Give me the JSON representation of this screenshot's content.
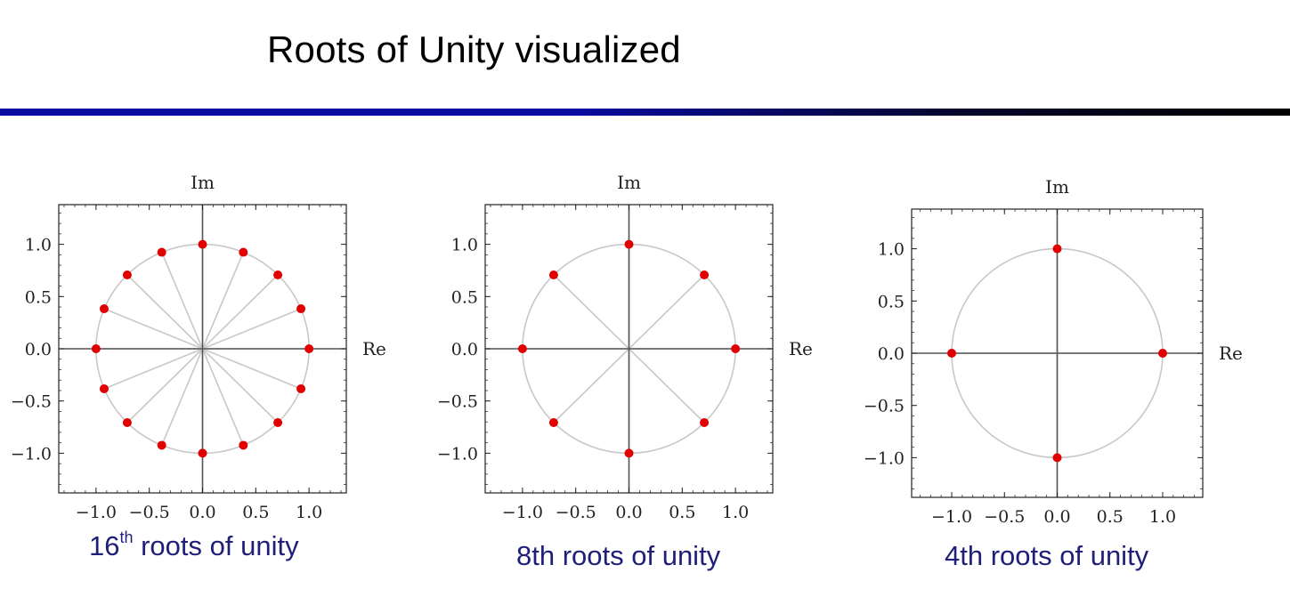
{
  "slide": {
    "title": "Roots of Unity visualized",
    "accent_color": "#0a0a9e"
  },
  "captions": [
    {
      "prefix": "16",
      "sup": "th",
      "text": " roots of unity"
    },
    {
      "prefix": "8th roots of unity",
      "sup": "",
      "text": ""
    },
    {
      "prefix": "4th roots of unity",
      "sup": "",
      "text": ""
    }
  ],
  "chart_data": [
    {
      "type": "scatter",
      "n": 16,
      "xlabel": "Re",
      "ylabel": "Im",
      "xlim": [
        -1.35,
        1.35
      ],
      "ylim": [
        -1.38,
        1.38
      ],
      "xticks": [
        -1.0,
        -0.5,
        0.0,
        0.5,
        1.0
      ],
      "yticks": [
        -1.0,
        -0.5,
        0.0,
        0.5,
        1.0
      ],
      "xtick_labels": [
        "−1.0",
        "−0.5",
        "0.0",
        "0.5",
        "1.0"
      ],
      "ytick_labels": [
        "−1.0",
        "−0.5",
        "0.0",
        "0.5",
        "1.0"
      ],
      "unit_circle": true,
      "spokes": true,
      "point_color": "#e00000",
      "points": [
        [
          1.0,
          0.0
        ],
        [
          0.924,
          0.383
        ],
        [
          0.707,
          0.707
        ],
        [
          0.383,
          0.924
        ],
        [
          0.0,
          1.0
        ],
        [
          -0.383,
          0.924
        ],
        [
          -0.707,
          0.707
        ],
        [
          -0.924,
          0.383
        ],
        [
          -1.0,
          0.0
        ],
        [
          -0.924,
          -0.383
        ],
        [
          -0.707,
          -0.707
        ],
        [
          -0.383,
          -0.924
        ],
        [
          0.0,
          -1.0
        ],
        [
          0.383,
          -0.924
        ],
        [
          0.707,
          -0.707
        ],
        [
          0.924,
          -0.383
        ]
      ]
    },
    {
      "type": "scatter",
      "n": 8,
      "xlabel": "Re",
      "ylabel": "Im",
      "xlim": [
        -1.35,
        1.35
      ],
      "ylim": [
        -1.38,
        1.38
      ],
      "xticks": [
        -1.0,
        -0.5,
        0.0,
        0.5,
        1.0
      ],
      "yticks": [
        -1.0,
        -0.5,
        0.0,
        0.5,
        1.0
      ],
      "xtick_labels": [
        "−1.0",
        "−0.5",
        "0.0",
        "0.5",
        "1.0"
      ],
      "ytick_labels": [
        "−1.0",
        "−0.5",
        "0.0",
        "0.5",
        "1.0"
      ],
      "unit_circle": true,
      "spokes": true,
      "point_color": "#e00000",
      "points": [
        [
          1.0,
          0.0
        ],
        [
          0.707,
          0.707
        ],
        [
          0.0,
          1.0
        ],
        [
          -0.707,
          0.707
        ],
        [
          -1.0,
          0.0
        ],
        [
          -0.707,
          -0.707
        ],
        [
          0.0,
          -1.0
        ],
        [
          0.707,
          -0.707
        ]
      ]
    },
    {
      "type": "scatter",
      "n": 4,
      "xlabel": "Re",
      "ylabel": "Im",
      "xlim": [
        -1.38,
        1.38
      ],
      "ylim": [
        -1.38,
        1.38
      ],
      "xticks": [
        -1.0,
        -0.5,
        0.0,
        0.5,
        1.0
      ],
      "yticks": [
        -1.0,
        -0.5,
        0.0,
        0.5,
        1.0
      ],
      "xtick_labels": [
        "−1.0",
        "−0.5",
        "0.0",
        "0.5",
        "1.0"
      ],
      "ytick_labels": [
        "−1.0",
        "−0.5",
        "0.0",
        "0.5",
        "1.0"
      ],
      "unit_circle": true,
      "spokes": true,
      "point_color": "#e00000",
      "points": [
        [
          1.0,
          0.0
        ],
        [
          0.0,
          1.0
        ],
        [
          -1.0,
          0.0
        ],
        [
          0.0,
          -1.0
        ]
      ]
    }
  ]
}
